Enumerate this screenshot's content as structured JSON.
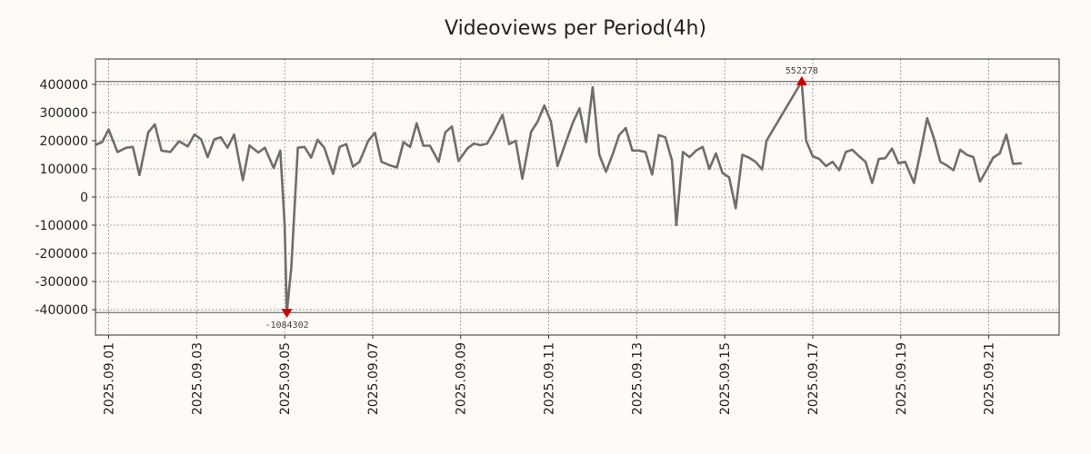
{
  "chart_data": {
    "type": "line",
    "title": "Videoviews per Period(4h)",
    "xlabel": "",
    "ylabel": "",
    "xlim": [
      -0.3,
      21.6
    ],
    "ylim": [
      -490000,
      490000
    ],
    "y_ticks": [
      400000,
      300000,
      200000,
      100000,
      0,
      -100000,
      -200000,
      -300000,
      -400000
    ],
    "y_tick_labels": [
      "400000",
      "300000",
      "200000",
      "100000",
      "0",
      "-100000",
      "-200000",
      "-300000",
      "-400000"
    ],
    "x_ticks": [
      0,
      2,
      4,
      6,
      8,
      10,
      12,
      14,
      16,
      18,
      20
    ],
    "x_tick_labels": [
      "2025.09.01",
      "2025.09.03",
      "2025.09.05",
      "2025.09.07",
      "2025.09.09",
      "2025.09.11",
      "2025.09.13",
      "2025.09.15",
      "2025.09.17",
      "2025.09.19",
      "2025.09.21"
    ],
    "grid": true,
    "reference_lines": [
      410000,
      -410000
    ],
    "line_color": "#6e6e6e",
    "marker_color": "#cc0000",
    "annotations": [
      {
        "label": "552278",
        "x": 15.75,
        "y": 410000,
        "marker": "triangle-up"
      },
      {
        "label": "-1084302",
        "x": 4.05,
        "y": -410000,
        "marker": "triangle-down"
      }
    ],
    "series": [
      {
        "values": [
          [
            -0.3,
            185000
          ],
          [
            -0.15,
            195000
          ],
          [
            0.0,
            240000
          ],
          [
            0.2,
            160000
          ],
          [
            0.4,
            175000
          ],
          [
            0.55,
            178000
          ],
          [
            0.7,
            78000
          ],
          [
            0.9,
            230000
          ],
          [
            1.05,
            258000
          ],
          [
            1.2,
            165000
          ],
          [
            1.4,
            160000
          ],
          [
            1.6,
            198000
          ],
          [
            1.8,
            180000
          ],
          [
            1.95,
            222000
          ],
          [
            2.1,
            205000
          ],
          [
            2.25,
            142000
          ],
          [
            2.4,
            205000
          ],
          [
            2.55,
            212000
          ],
          [
            2.7,
            175000
          ],
          [
            2.85,
            222000
          ],
          [
            3.05,
            60000
          ],
          [
            3.2,
            183000
          ],
          [
            3.4,
            158000
          ],
          [
            3.55,
            175000
          ],
          [
            3.75,
            103000
          ],
          [
            3.9,
            165000
          ],
          [
            4.0,
            -100000
          ],
          [
            4.05,
            -410000
          ],
          [
            4.15,
            -250000
          ],
          [
            4.3,
            175000
          ],
          [
            4.45,
            178000
          ],
          [
            4.6,
            140000
          ],
          [
            4.75,
            203000
          ],
          [
            4.9,
            175000
          ],
          [
            5.1,
            82000
          ],
          [
            5.25,
            178000
          ],
          [
            5.4,
            188000
          ],
          [
            5.55,
            108000
          ],
          [
            5.7,
            125000
          ],
          [
            5.9,
            200000
          ],
          [
            6.05,
            228000
          ],
          [
            6.2,
            125000
          ],
          [
            6.4,
            112000
          ],
          [
            6.55,
            105000
          ],
          [
            6.7,
            195000
          ],
          [
            6.85,
            178000
          ],
          [
            7.0,
            262000
          ],
          [
            7.15,
            182000
          ],
          [
            7.3,
            182000
          ],
          [
            7.5,
            125000
          ],
          [
            7.65,
            230000
          ],
          [
            7.8,
            250000
          ],
          [
            7.95,
            128000
          ],
          [
            8.15,
            172000
          ],
          [
            8.3,
            190000
          ],
          [
            8.45,
            184000
          ],
          [
            8.6,
            190000
          ],
          [
            8.75,
            230000
          ],
          [
            8.95,
            292000
          ],
          [
            9.1,
            188000
          ],
          [
            9.25,
            200000
          ],
          [
            9.4,
            65000
          ],
          [
            9.6,
            232000
          ],
          [
            9.75,
            268000
          ],
          [
            9.9,
            325000
          ],
          [
            10.05,
            268000
          ],
          [
            10.2,
            110000
          ],
          [
            10.35,
            178000
          ],
          [
            10.55,
            265000
          ],
          [
            10.7,
            315000
          ],
          [
            10.85,
            195000
          ],
          [
            11.0,
            390000
          ],
          [
            11.15,
            150000
          ],
          [
            11.3,
            90000
          ],
          [
            11.45,
            150000
          ],
          [
            11.6,
            220000
          ],
          [
            11.75,
            245000
          ],
          [
            11.9,
            165000
          ],
          [
            12.05,
            165000
          ],
          [
            12.2,
            160000
          ],
          [
            12.35,
            80000
          ],
          [
            12.5,
            220000
          ],
          [
            12.65,
            212000
          ],
          [
            12.8,
            130000
          ],
          [
            12.9,
            -100000
          ],
          [
            13.05,
            160000
          ],
          [
            13.2,
            142000
          ],
          [
            13.35,
            165000
          ],
          [
            13.5,
            178000
          ],
          [
            13.65,
            100000
          ],
          [
            13.8,
            155000
          ],
          [
            13.95,
            85000
          ],
          [
            14.1,
            70000
          ],
          [
            14.25,
            -40000
          ],
          [
            14.4,
            150000
          ],
          [
            14.55,
            140000
          ],
          [
            14.7,
            125000
          ],
          [
            14.85,
            98000
          ],
          [
            14.95,
            200000
          ],
          [
            15.75,
            410000
          ],
          [
            15.85,
            200000
          ],
          [
            16.0,
            145000
          ],
          [
            16.15,
            135000
          ],
          [
            16.3,
            110000
          ],
          [
            16.45,
            125000
          ],
          [
            16.6,
            95000
          ],
          [
            16.75,
            160000
          ],
          [
            16.9,
            168000
          ],
          [
            17.05,
            145000
          ],
          [
            17.2,
            125000
          ],
          [
            17.35,
            50000
          ],
          [
            17.5,
            135000
          ],
          [
            17.65,
            138000
          ],
          [
            17.8,
            172000
          ],
          [
            17.95,
            120000
          ],
          [
            18.1,
            125000
          ],
          [
            18.3,
            50000
          ],
          [
            18.45,
            160000
          ],
          [
            18.6,
            280000
          ],
          [
            18.75,
            210000
          ],
          [
            18.9,
            125000
          ],
          [
            19.05,
            112000
          ],
          [
            19.2,
            95000
          ],
          [
            19.35,
            168000
          ],
          [
            19.5,
            150000
          ],
          [
            19.65,
            142000
          ],
          [
            19.8,
            55000
          ],
          [
            19.95,
            95000
          ],
          [
            20.1,
            140000
          ],
          [
            20.25,
            155000
          ],
          [
            20.4,
            222000
          ],
          [
            20.55,
            118000
          ],
          [
            20.75,
            120000
          ]
        ]
      }
    ]
  }
}
